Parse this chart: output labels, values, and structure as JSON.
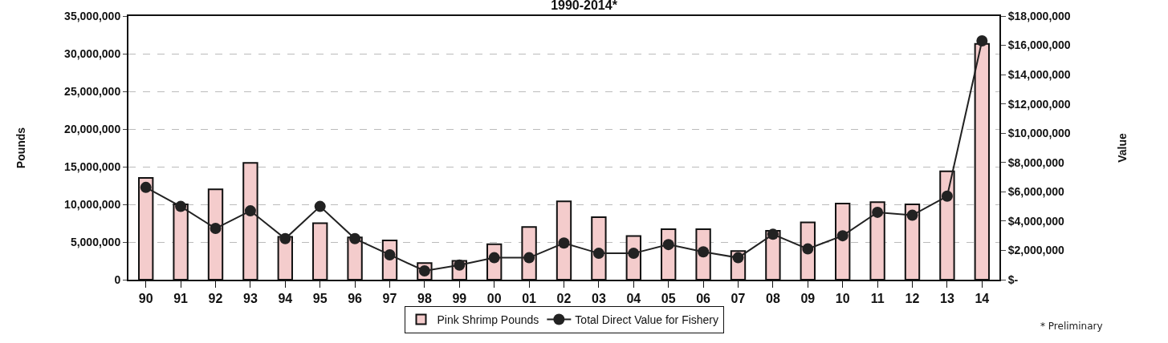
{
  "chart_data": {
    "type": "bar",
    "title": "1990-2014*",
    "ylabel": "Pounds",
    "y2label": "Value",
    "categories": [
      "90",
      "91",
      "92",
      "93",
      "94",
      "95",
      "96",
      "97",
      "98",
      "99",
      "00",
      "01",
      "02",
      "03",
      "04",
      "05",
      "06",
      "07",
      "08",
      "09",
      "10",
      "11",
      "12",
      "13",
      "14"
    ],
    "series": [
      {
        "name": "Pink Shrimp Pounds",
        "color": "#f4cccc",
        "values": [
          13500000,
          10000000,
          12000000,
          15500000,
          5700000,
          7500000,
          5600000,
          5200000,
          2200000,
          2500000,
          4700000,
          7000000,
          10400000,
          8300000,
          5800000,
          6700000,
          6700000,
          3800000,
          6500000,
          7600000,
          10100000,
          10300000,
          10000000,
          14400000,
          31300000
        ]
      },
      {
        "name": "Total Direct Value for Fishery",
        "type": "line",
        "axis": "y2",
        "color": "#222222",
        "marker": "circle",
        "line_style": "solid",
        "values": [
          6300000,
          5000000,
          3500000,
          4700000,
          2800000,
          5000000,
          2800000,
          1700000,
          600000,
          1000000,
          1500000,
          1500000,
          2500000,
          1800000,
          1800000,
          2400000,
          1900000,
          1500000,
          3100000,
          2100000,
          3000000,
          4600000,
          4400000,
          5700000,
          16300000
        ]
      }
    ],
    "ylim": [
      0,
      35000000
    ],
    "yticks": [
      {
        "value": 0,
        "label": "0"
      },
      {
        "value": 5000000,
        "label": "5,000,000"
      },
      {
        "value": 10000000,
        "label": "10,000,000"
      },
      {
        "value": 15000000,
        "label": "15,000,000"
      },
      {
        "value": 20000000,
        "label": "20,000,000"
      },
      {
        "value": 25000000,
        "label": "25,000,000"
      },
      {
        "value": 30000000,
        "label": "30,000,000"
      },
      {
        "value": 35000000,
        "label": "35,000,000"
      }
    ],
    "y2lim": [
      0,
      18000000
    ],
    "y2ticks": [
      {
        "value": 0,
        "label": "$-"
      },
      {
        "value": 2000000,
        "label": "$2,000,000"
      },
      {
        "value": 4000000,
        "label": "$4,000,000"
      },
      {
        "value": 6000000,
        "label": "$6,000,000"
      },
      {
        "value": 8000000,
        "label": "$8,000,000"
      },
      {
        "value": 10000000,
        "label": "$10,000,000"
      },
      {
        "value": 12000000,
        "label": "$12,000,000"
      },
      {
        "value": 14000000,
        "label": "$14,000,000"
      },
      {
        "value": 16000000,
        "label": "$16,000,000"
      },
      {
        "value": 18000000,
        "label": "$18,000,000"
      }
    ],
    "grid": "y",
    "legend": "bottom",
    "annotations": [
      "* Preliminary"
    ]
  }
}
